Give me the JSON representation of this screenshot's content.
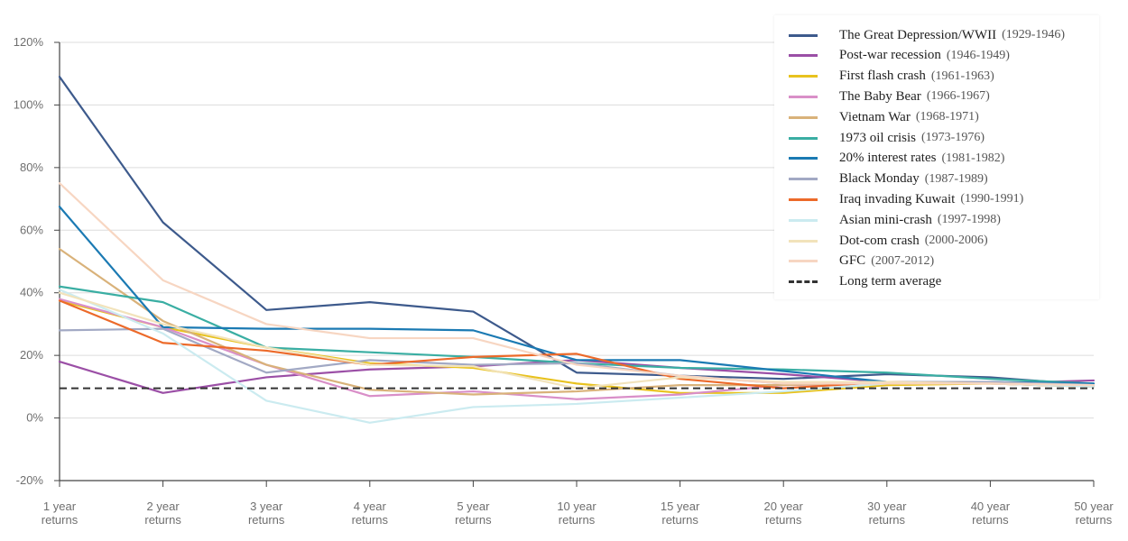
{
  "chart_data": {
    "type": "line",
    "title": "",
    "xlabel": "",
    "ylabel": "",
    "ylim": [
      -20,
      120
    ],
    "y_ticks": [
      "-20%",
      "0%",
      "20%",
      "40%",
      "60%",
      "80%",
      "100%",
      "120%"
    ],
    "y_tick_values": [
      -20,
      0,
      20,
      40,
      60,
      80,
      100,
      120
    ],
    "grid": "horizontal",
    "legend_position": "top-right",
    "categories": [
      [
        "1 year",
        "returns"
      ],
      [
        "2 year",
        "returns"
      ],
      [
        "3 year",
        "returns"
      ],
      [
        "4 year",
        "returns"
      ],
      [
        "5 year",
        "returns"
      ],
      [
        "10 year",
        "returns"
      ],
      [
        "15 year",
        "returns"
      ],
      [
        "20 year",
        "returns"
      ],
      [
        "30 year",
        "returns"
      ],
      [
        "40 year",
        "returns"
      ],
      [
        "50 year",
        "returns"
      ]
    ],
    "series": [
      {
        "name": "The Great Depression/WWII",
        "period": "(1929-1946)",
        "color": "#3d5a8c",
        "values": [
          109,
          62.5,
          34.5,
          37,
          34,
          14.5,
          13.5,
          12.5,
          14,
          13,
          10.5
        ]
      },
      {
        "name": "Post-war recession",
        "period": "(1946-1949)",
        "color": "#9b4fa6",
        "values": [
          18,
          8,
          13,
          15.5,
          16.5,
          18.5,
          16,
          14,
          11.5,
          11,
          12
        ]
      },
      {
        "name": "First flash crash",
        "period": "(1961-1963)",
        "color": "#e8c21e",
        "values": [
          37.5,
          29,
          22.5,
          17.5,
          16,
          11,
          8,
          8,
          10.5,
          11,
          10
        ]
      },
      {
        "name": "The Baby Bear",
        "period": "(1966-1967)",
        "color": "#d98fc8",
        "values": [
          38,
          29,
          17,
          7,
          8.5,
          6,
          7.5,
          10.5,
          11,
          11.5,
          10.5
        ]
      },
      {
        "name": "Vietnam War",
        "period": "(1968-1971)",
        "color": "#d9b27a",
        "values": [
          54,
          31,
          17,
          9,
          7.5,
          8.5,
          10.5,
          10.5,
          11.5,
          11.5,
          10.5
        ]
      },
      {
        "name": "1973 oil crisis",
        "period": "(1973-1976)",
        "color": "#3aaea3",
        "values": [
          42,
          37,
          22.5,
          21,
          19.5,
          17.5,
          16,
          15.5,
          14.5,
          12.5,
          11
        ]
      },
      {
        "name": "20% interest rates",
        "period": "(1981-1982)",
        "color": "#1b7ab3",
        "values": [
          67.5,
          29,
          28.5,
          28.5,
          28,
          18.5,
          18.5,
          15,
          11.5,
          11.5,
          11
        ]
      },
      {
        "name": "Black Monday",
        "period": "(1987-1989)",
        "color": "#a2a9c4",
        "values": [
          28,
          28.5,
          14.5,
          18.5,
          17,
          17.5,
          13.5,
          11,
          11.5,
          11.5,
          10.5
        ]
      },
      {
        "name": "Iraq invading Kuwait",
        "period": "(1990-1991)",
        "color": "#ec6a2a",
        "values": [
          37.5,
          24,
          21.5,
          17,
          19.5,
          20.5,
          12.5,
          9.5,
          11.5,
          11,
          10
        ]
      },
      {
        "name": "Asian mini-crash",
        "period": "(1997-1998)",
        "color": "#cbebf0",
        "values": [
          41,
          27,
          5.5,
          -1.5,
          3.5,
          4.5,
          6.5,
          8.5,
          11,
          11,
          10
        ]
      },
      {
        "name": "Dot-com crash",
        "period": "(2000-2006)",
        "color": "#f2e3bb",
        "values": [
          40,
          30,
          22.5,
          17,
          16.5,
          9.5,
          13,
          11.5,
          11.5,
          11,
          10.5
        ]
      },
      {
        "name": "GFC",
        "period": "(2007-2012)",
        "color": "#f7d6c2",
        "values": [
          75,
          44,
          30,
          25.5,
          25.5,
          17,
          13.5,
          11,
          11,
          11,
          10.5
        ]
      }
    ],
    "reference_line": {
      "name": "Long term average",
      "value": 9.5,
      "color": "#333333",
      "style": "dashed"
    }
  }
}
